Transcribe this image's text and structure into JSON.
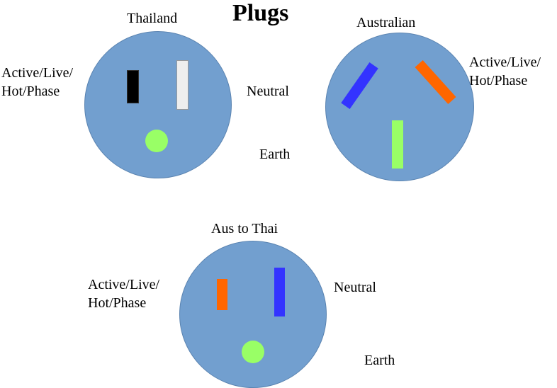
{
  "title": "Plugs",
  "colors": {
    "plug_face": "#729fcf",
    "pin_black": "#000000",
    "pin_white": "#eeeeee",
    "pin_blue": "#3333ff",
    "pin_orange": "#ff6600",
    "pin_green": "#99ff66"
  },
  "plugs": [
    {
      "name": "Thailand",
      "labels": {
        "active": "Active/Live/\nHot/Phase",
        "neutral": "Neutral",
        "earth": "Earth"
      }
    },
    {
      "name": "Australian",
      "labels": {
        "active": "Active/Live/\nHot/Phase"
      }
    },
    {
      "name": "Aus to Thai",
      "labels": {
        "active": "Active/Live/\nHot/Phase",
        "neutral": "Neutral",
        "earth": "Earth"
      }
    }
  ]
}
